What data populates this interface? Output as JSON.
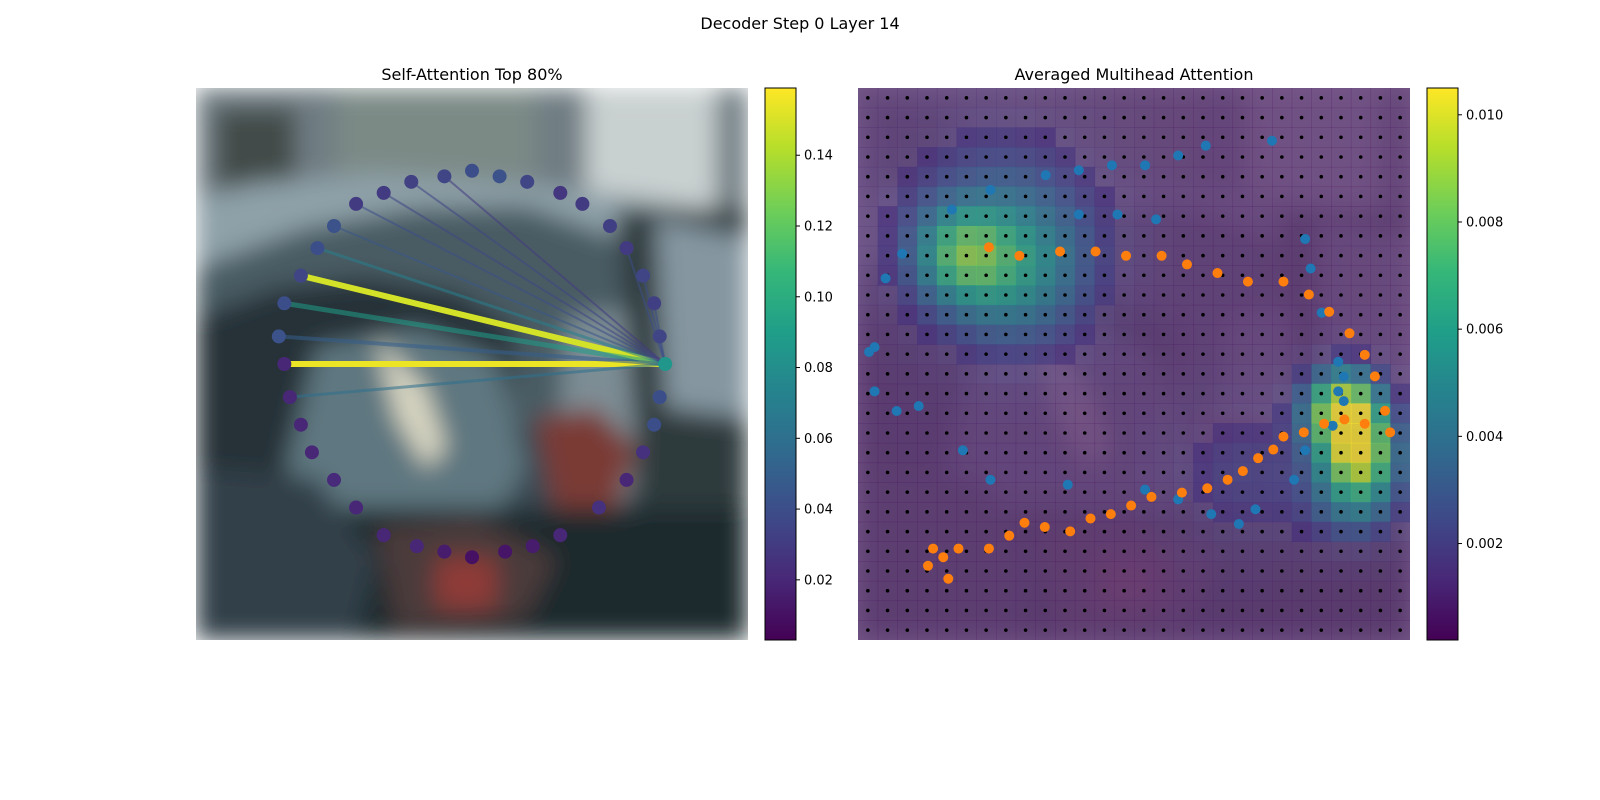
{
  "figure": {
    "title": "Decoder Step 0 Layer 14"
  },
  "chart_data": [
    {
      "type": "scatter",
      "title": "Self-Attention Top 80%",
      "description_points": "contour points on a ring over a blurred street image; lines from one query point to attended points, colored by attention weight",
      "xlim": [
        0,
        1
      ],
      "ylim": [
        0,
        1
      ],
      "colorbar": {
        "range": [
          0.003,
          0.159
        ],
        "ticks": [
          0.02,
          0.04,
          0.06,
          0.08,
          0.1,
          0.12,
          0.14
        ],
        "tick_labels": [
          "0.02",
          "0.04",
          "0.06",
          "0.08",
          "0.10",
          "0.12",
          "0.14"
        ],
        "cmap": "viridis"
      },
      "query_point": {
        "x": 0.85,
        "y": 0.5,
        "value": 0.085
      },
      "points": [
        {
          "x": 0.5,
          "y": 0.85,
          "v": 0.04
        },
        {
          "x": 0.55,
          "y": 0.84,
          "v": 0.042
        },
        {
          "x": 0.6,
          "y": 0.83,
          "v": 0.035
        },
        {
          "x": 0.66,
          "y": 0.81,
          "v": 0.028
        },
        {
          "x": 0.7,
          "y": 0.79,
          "v": 0.03
        },
        {
          "x": 0.75,
          "y": 0.75,
          "v": 0.032
        },
        {
          "x": 0.78,
          "y": 0.71,
          "v": 0.03
        },
        {
          "x": 0.81,
          "y": 0.66,
          "v": 0.035
        },
        {
          "x": 0.83,
          "y": 0.61,
          "v": 0.032
        },
        {
          "x": 0.84,
          "y": 0.55,
          "v": 0.035
        },
        {
          "x": 0.85,
          "y": 0.5,
          "v": 0.085
        },
        {
          "x": 0.84,
          "y": 0.44,
          "v": 0.04
        },
        {
          "x": 0.83,
          "y": 0.39,
          "v": 0.04
        },
        {
          "x": 0.81,
          "y": 0.34,
          "v": 0.025
        },
        {
          "x": 0.78,
          "y": 0.29,
          "v": 0.02
        },
        {
          "x": 0.73,
          "y": 0.24,
          "v": 0.025
        },
        {
          "x": 0.66,
          "y": 0.19,
          "v": 0.02
        },
        {
          "x": 0.61,
          "y": 0.17,
          "v": 0.015
        },
        {
          "x": 0.56,
          "y": 0.16,
          "v": 0.012
        },
        {
          "x": 0.5,
          "y": 0.15,
          "v": 0.01
        },
        {
          "x": 0.45,
          "y": 0.16,
          "v": 0.015
        },
        {
          "x": 0.4,
          "y": 0.17,
          "v": 0.02
        },
        {
          "x": 0.34,
          "y": 0.19,
          "v": 0.02
        },
        {
          "x": 0.29,
          "y": 0.24,
          "v": 0.02
        },
        {
          "x": 0.25,
          "y": 0.29,
          "v": 0.022
        },
        {
          "x": 0.21,
          "y": 0.34,
          "v": 0.02
        },
        {
          "x": 0.19,
          "y": 0.39,
          "v": 0.02
        },
        {
          "x": 0.17,
          "y": 0.44,
          "v": 0.02
        },
        {
          "x": 0.16,
          "y": 0.5,
          "v": 0.02
        },
        {
          "x": 0.15,
          "y": 0.55,
          "v": 0.042
        },
        {
          "x": 0.16,
          "y": 0.61,
          "v": 0.04
        },
        {
          "x": 0.19,
          "y": 0.66,
          "v": 0.035
        },
        {
          "x": 0.22,
          "y": 0.71,
          "v": 0.04
        },
        {
          "x": 0.25,
          "y": 0.75,
          "v": 0.042
        },
        {
          "x": 0.29,
          "y": 0.79,
          "v": 0.03
        },
        {
          "x": 0.34,
          "y": 0.81,
          "v": 0.03
        },
        {
          "x": 0.39,
          "y": 0.83,
          "v": 0.033
        },
        {
          "x": 0.45,
          "y": 0.84,
          "v": 0.035
        }
      ],
      "links": [
        {
          "to": 31,
          "v": 0.149,
          "w": 6
        },
        {
          "to": 28,
          "v": 0.155,
          "w": 6
        },
        {
          "to": 30,
          "v": 0.09,
          "w": 5
        },
        {
          "to": 29,
          "v": 0.05,
          "w": 4
        },
        {
          "to": 27,
          "v": 0.06,
          "w": 3
        },
        {
          "to": 32,
          "v": 0.07,
          "w": 3
        },
        {
          "to": 33,
          "v": 0.045,
          "w": 2
        },
        {
          "to": 34,
          "v": 0.04,
          "w": 2
        },
        {
          "to": 35,
          "v": 0.035,
          "w": 2
        },
        {
          "to": 36,
          "v": 0.035,
          "w": 2
        },
        {
          "to": 37,
          "v": 0.03,
          "w": 2
        },
        {
          "to": 6,
          "v": 0.04,
          "w": 2
        },
        {
          "to": 7,
          "v": 0.04,
          "w": 2
        },
        {
          "to": 8,
          "v": 0.04,
          "w": 2
        }
      ]
    },
    {
      "type": "heatmap",
      "title": "Averaged Multihead Attention",
      "xlim": [
        0,
        1
      ],
      "ylim": [
        0,
        1
      ],
      "colorbar": {
        "range": [
          0.0002,
          0.0105
        ],
        "ticks": [
          0.002,
          0.004,
          0.006,
          0.008,
          0.01
        ],
        "tick_labels": [
          "0.002",
          "0.004",
          "0.006",
          "0.008",
          "0.010"
        ],
        "cmap": "viridis"
      },
      "grid_size": 28,
      "blue_points": [
        [
          0.75,
          0.96
        ],
        [
          0.63,
          0.95
        ],
        [
          0.58,
          0.93
        ],
        [
          0.52,
          0.91
        ],
        [
          0.46,
          0.91
        ],
        [
          0.4,
          0.9
        ],
        [
          0.34,
          0.89
        ],
        [
          0.24,
          0.86
        ],
        [
          0.17,
          0.82
        ],
        [
          0.08,
          0.73
        ],
        [
          0.05,
          0.68
        ],
        [
          0.03,
          0.54
        ],
        [
          0.02,
          0.53
        ],
        [
          0.03,
          0.45
        ],
        [
          0.07,
          0.41
        ],
        [
          0.11,
          0.42
        ],
        [
          0.19,
          0.33
        ],
        [
          0.24,
          0.27
        ],
        [
          0.38,
          0.26
        ],
        [
          0.52,
          0.25
        ],
        [
          0.58,
          0.23
        ],
        [
          0.64,
          0.2
        ],
        [
          0.69,
          0.18
        ],
        [
          0.72,
          0.21
        ],
        [
          0.79,
          0.27
        ],
        [
          0.81,
          0.33
        ],
        [
          0.86,
          0.38
        ],
        [
          0.88,
          0.43
        ],
        [
          0.87,
          0.51
        ],
        [
          0.84,
          0.61
        ],
        [
          0.82,
          0.7
        ],
        [
          0.81,
          0.76
        ],
        [
          0.88,
          0.48
        ],
        [
          0.87,
          0.45
        ],
        [
          0.54,
          0.8
        ],
        [
          0.47,
          0.81
        ],
        [
          0.4,
          0.81
        ]
      ],
      "orange_points": [
        [
          0.16,
          0.72
        ],
        [
          0.22,
          0.7
        ],
        [
          0.3,
          0.71
        ],
        [
          0.37,
          0.71
        ],
        [
          0.43,
          0.7
        ],
        [
          0.5,
          0.7
        ],
        [
          0.55,
          0.68
        ],
        [
          0.61,
          0.66
        ],
        [
          0.67,
          0.64
        ],
        [
          0.74,
          0.64
        ],
        [
          0.79,
          0.61
        ],
        [
          0.83,
          0.57
        ],
        [
          0.87,
          0.52
        ],
        [
          0.9,
          0.47
        ],
        [
          0.92,
          0.42
        ],
        [
          0.94,
          0.34
        ],
        [
          0.95,
          0.29
        ],
        [
          0.9,
          0.31
        ],
        [
          0.86,
          0.32
        ],
        [
          0.82,
          0.31
        ],
        [
          0.78,
          0.29
        ],
        [
          0.74,
          0.28
        ],
        [
          0.72,
          0.25
        ],
        [
          0.69,
          0.23
        ],
        [
          0.66,
          0.2
        ],
        [
          0.63,
          0.18
        ],
        [
          0.59,
          0.16
        ],
        [
          0.54,
          0.15
        ],
        [
          0.48,
          0.14
        ],
        [
          0.44,
          0.12
        ],
        [
          0.4,
          0.1
        ],
        [
          0.36,
          0.09
        ],
        [
          0.32,
          0.06
        ],
        [
          0.27,
          0.07
        ],
        [
          0.23,
          0.08
        ],
        [
          0.2,
          0.05
        ],
        [
          0.16,
          0.02
        ],
        [
          0.1,
          0.02
        ],
        [
          0.07,
          0.0
        ],
        [
          0.05,
          0.02
        ],
        [
          0.04,
          -0.02
        ],
        [
          0.08,
          -0.05
        ]
      ]
    }
  ],
  "colors": {
    "orange": "#ff7f0e",
    "blue": "#1f77b4",
    "grid_dot": "#000000"
  }
}
